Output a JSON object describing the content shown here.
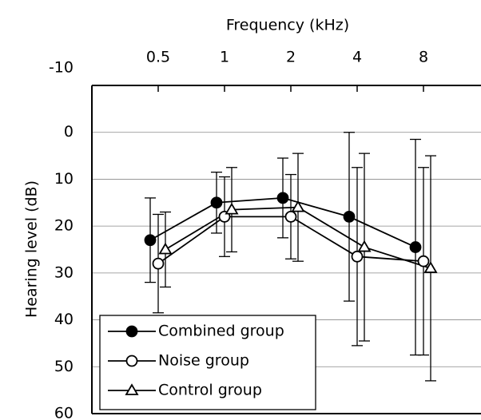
{
  "chart_data": {
    "type": "line",
    "xlabel": "Frequency (kHz)",
    "ylabel": "Hearing level (dB)",
    "categories": [
      "0.5",
      "1",
      "2",
      "4",
      "8"
    ],
    "ylim": [
      -10,
      60
    ],
    "yticks": [
      -10,
      0,
      10,
      20,
      30,
      40,
      50,
      60
    ],
    "y_inverted": true,
    "grid": true,
    "legend": "lower left",
    "series": [
      {
        "name": "Combined group",
        "marker": "filled-circle",
        "color": "#000000",
        "values": [
          23,
          15,
          14,
          18,
          24.5
        ],
        "errors": [
          9,
          6.5,
          8.5,
          18,
          23
        ]
      },
      {
        "name": "Noise group",
        "marker": "open-circle",
        "color": "#000000",
        "values": [
          28,
          18,
          18,
          26.5,
          27.5
        ],
        "errors": [
          10.5,
          8.5,
          9,
          19,
          20
        ]
      },
      {
        "name": "Control group",
        "marker": "open-triangle",
        "color": "#000000",
        "values": [
          25,
          16.5,
          16,
          24.5,
          29
        ],
        "errors": [
          8,
          9,
          11.5,
          20,
          24
        ]
      }
    ]
  }
}
